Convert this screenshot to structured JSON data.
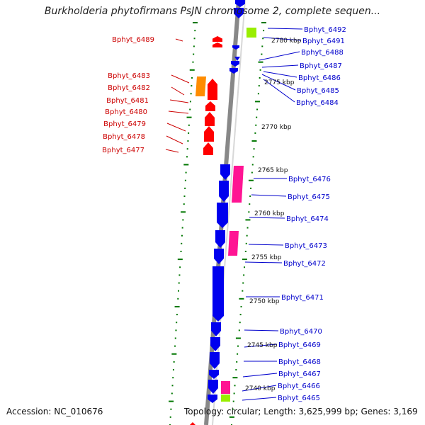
{
  "title": "Burkholderia phytofirmans PsJN chromosome 2, complete sequen...",
  "footer": {
    "accession": "Accession: NC_010676",
    "stats": "Topology: circular; Length: 3,625,999 bp; Genes: 3,169"
  },
  "colors": {
    "forward_cds": "#ff0000",
    "reverse_cds": "#0000ee",
    "forward_label": "#cc0000",
    "reverse_label": "#0000cc",
    "backbone": "#888888",
    "ticks": "#007700",
    "orange_feature": "#ff8c00",
    "pink_feature": "#ff1493",
    "lime_feature": "#99ee00"
  },
  "kbp_ticks": [
    "2780 kbp",
    "2775 kbp",
    "2770 kbp",
    "2765 kbp",
    "2760 kbp",
    "2755 kbp",
    "2750 kbp",
    "2745 kbp",
    "2740 kbp"
  ],
  "left_genes": [
    "Bphyt_6489",
    "Bphyt_6483",
    "Bphyt_6482",
    "Bphyt_6481",
    "Bphyt_6480",
    "Bphyt_6479",
    "Bphyt_6478",
    "Bphyt_6477"
  ],
  "right_genes": [
    "Bphyt_6492",
    "Bphyt_6491",
    "Bphyt_6488",
    "Bphyt_6487",
    "Bphyt_6486",
    "Bphyt_6485",
    "Bphyt_6484",
    "Bphyt_6476",
    "Bphyt_6475",
    "Bphyt_6474",
    "Bphyt_6473",
    "Bphyt_6472",
    "Bphyt_6471",
    "Bphyt_6470",
    "Bphyt_6469",
    "Bphyt_6468",
    "Bphyt_6467",
    "Bphyt_6466",
    "Bphyt_6465"
  ]
}
